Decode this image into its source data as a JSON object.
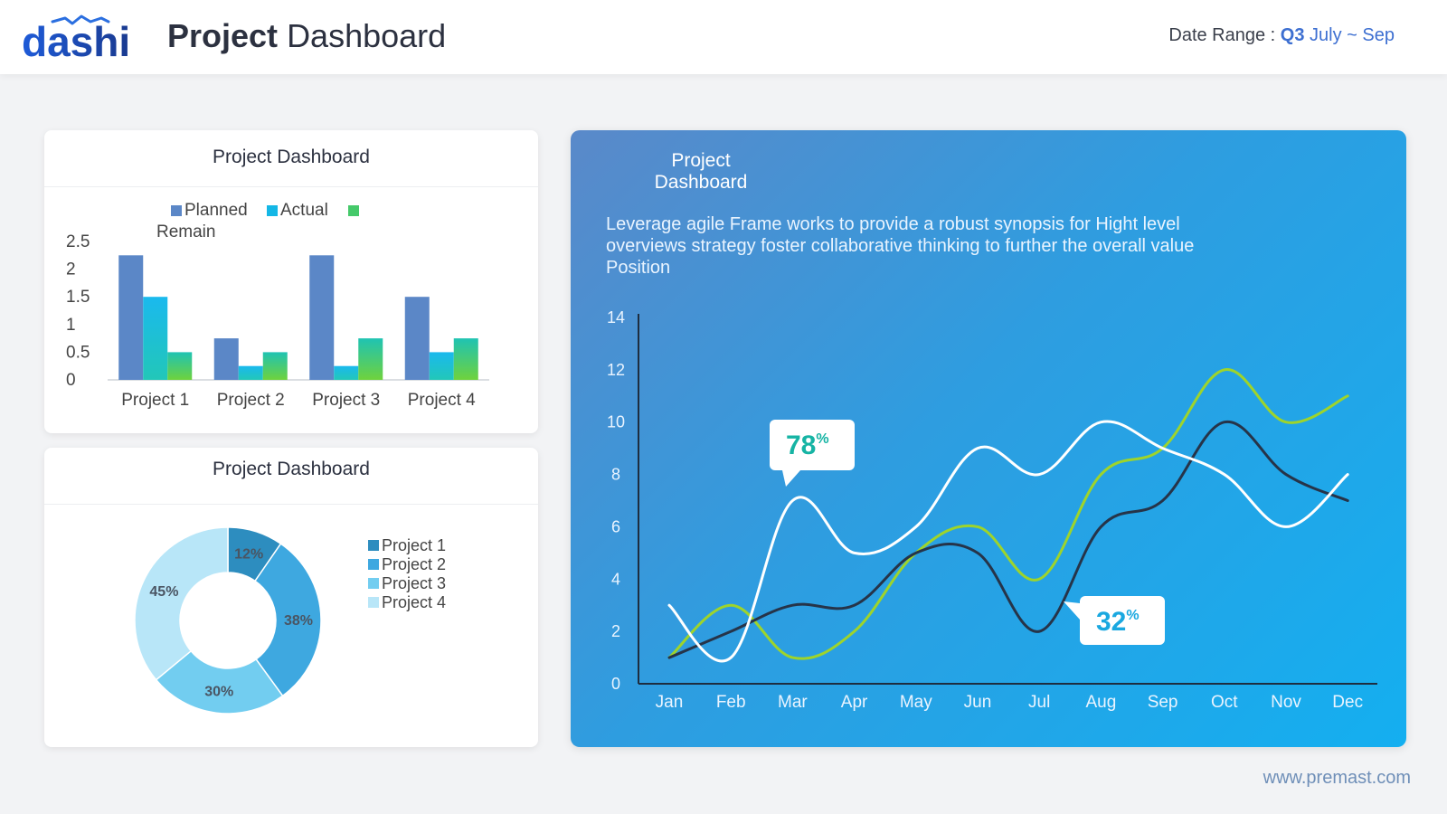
{
  "header": {
    "logo_text": "dashi",
    "title_bold": "Project",
    "title_light": "Dashboard",
    "date_range_label": "Date Range :",
    "date_range_quarter": "Q3",
    "date_range_months": "July ~ Sep"
  },
  "bar_card": {
    "title": "Project Dashboard"
  },
  "donut_card": {
    "title": "Project Dashboard"
  },
  "line_card": {
    "title_line1": "Project",
    "title_line2": "Dashboard",
    "description": "Leverage agile Frame works to provide a robust synopsis for Hight level overviews strategy foster collaborative thinking to further the overall value Position"
  },
  "footer": {
    "url": "www.premast.com"
  },
  "colors": {
    "planned": "#5b87c7",
    "actual": "#14b7e6",
    "remain": "#45c96a",
    "line_green": "#9ed42b",
    "line_dark": "#263449",
    "line_white": "#ffffff",
    "callout_teal": "#16b4a4",
    "callout_blue": "#1aa8e0"
  },
  "chart_data": [
    {
      "type": "bar",
      "categories": [
        "Project 1",
        "Project 2",
        "Project 3",
        "Project 4"
      ],
      "series": [
        {
          "name": "Planned",
          "values": [
            2.25,
            0.75,
            2.25,
            1.5
          ]
        },
        {
          "name": "Actual",
          "values": [
            1.5,
            0.25,
            0.25,
            0.5
          ]
        },
        {
          "name": "Remain",
          "values": [
            0.5,
            0.5,
            0.75,
            0.75
          ]
        }
      ],
      "ylim": [
        0,
        2.5
      ],
      "yticks": [
        "0",
        "0.5",
        "1",
        "1.5",
        "2",
        "2.5"
      ],
      "legend": "top"
    },
    {
      "type": "pie",
      "labels": [
        "Project 1",
        "Project 2",
        "Project 3",
        "Project 4"
      ],
      "values": [
        12,
        38,
        30,
        45
      ],
      "value_labels": [
        "12%",
        "38%",
        "30%",
        "45%"
      ],
      "colors": [
        "#2d8dbf",
        "#3ea8e0",
        "#72cdf0",
        "#b8e6f8"
      ],
      "legend": "right"
    },
    {
      "type": "line",
      "x": [
        "Jan",
        "Feb",
        "Mar",
        "Apr",
        "May",
        "Jun",
        "Jul",
        "Aug",
        "Sep",
        "Oct",
        "Nov",
        "Dec"
      ],
      "series": [
        {
          "values": [
            1,
            3,
            1,
            2,
            5,
            6,
            4,
            8,
            9,
            12,
            10,
            11
          ]
        },
        {
          "values": [
            1,
            2,
            3,
            3,
            5,
            5,
            2,
            6,
            7,
            10,
            8,
            7
          ]
        },
        {
          "values": [
            3,
            1,
            7,
            5,
            6,
            9,
            8,
            10,
            9,
            8,
            6,
            8
          ]
        }
      ],
      "ylim": [
        0,
        14
      ],
      "yticks": [
        "0",
        "2",
        "4",
        "6",
        "8",
        "10",
        "12",
        "14"
      ],
      "annotations": [
        {
          "label": "78",
          "suffix": "%",
          "month": "Mar"
        },
        {
          "label": "32",
          "suffix": "%",
          "month": "Jul"
        }
      ]
    }
  ]
}
